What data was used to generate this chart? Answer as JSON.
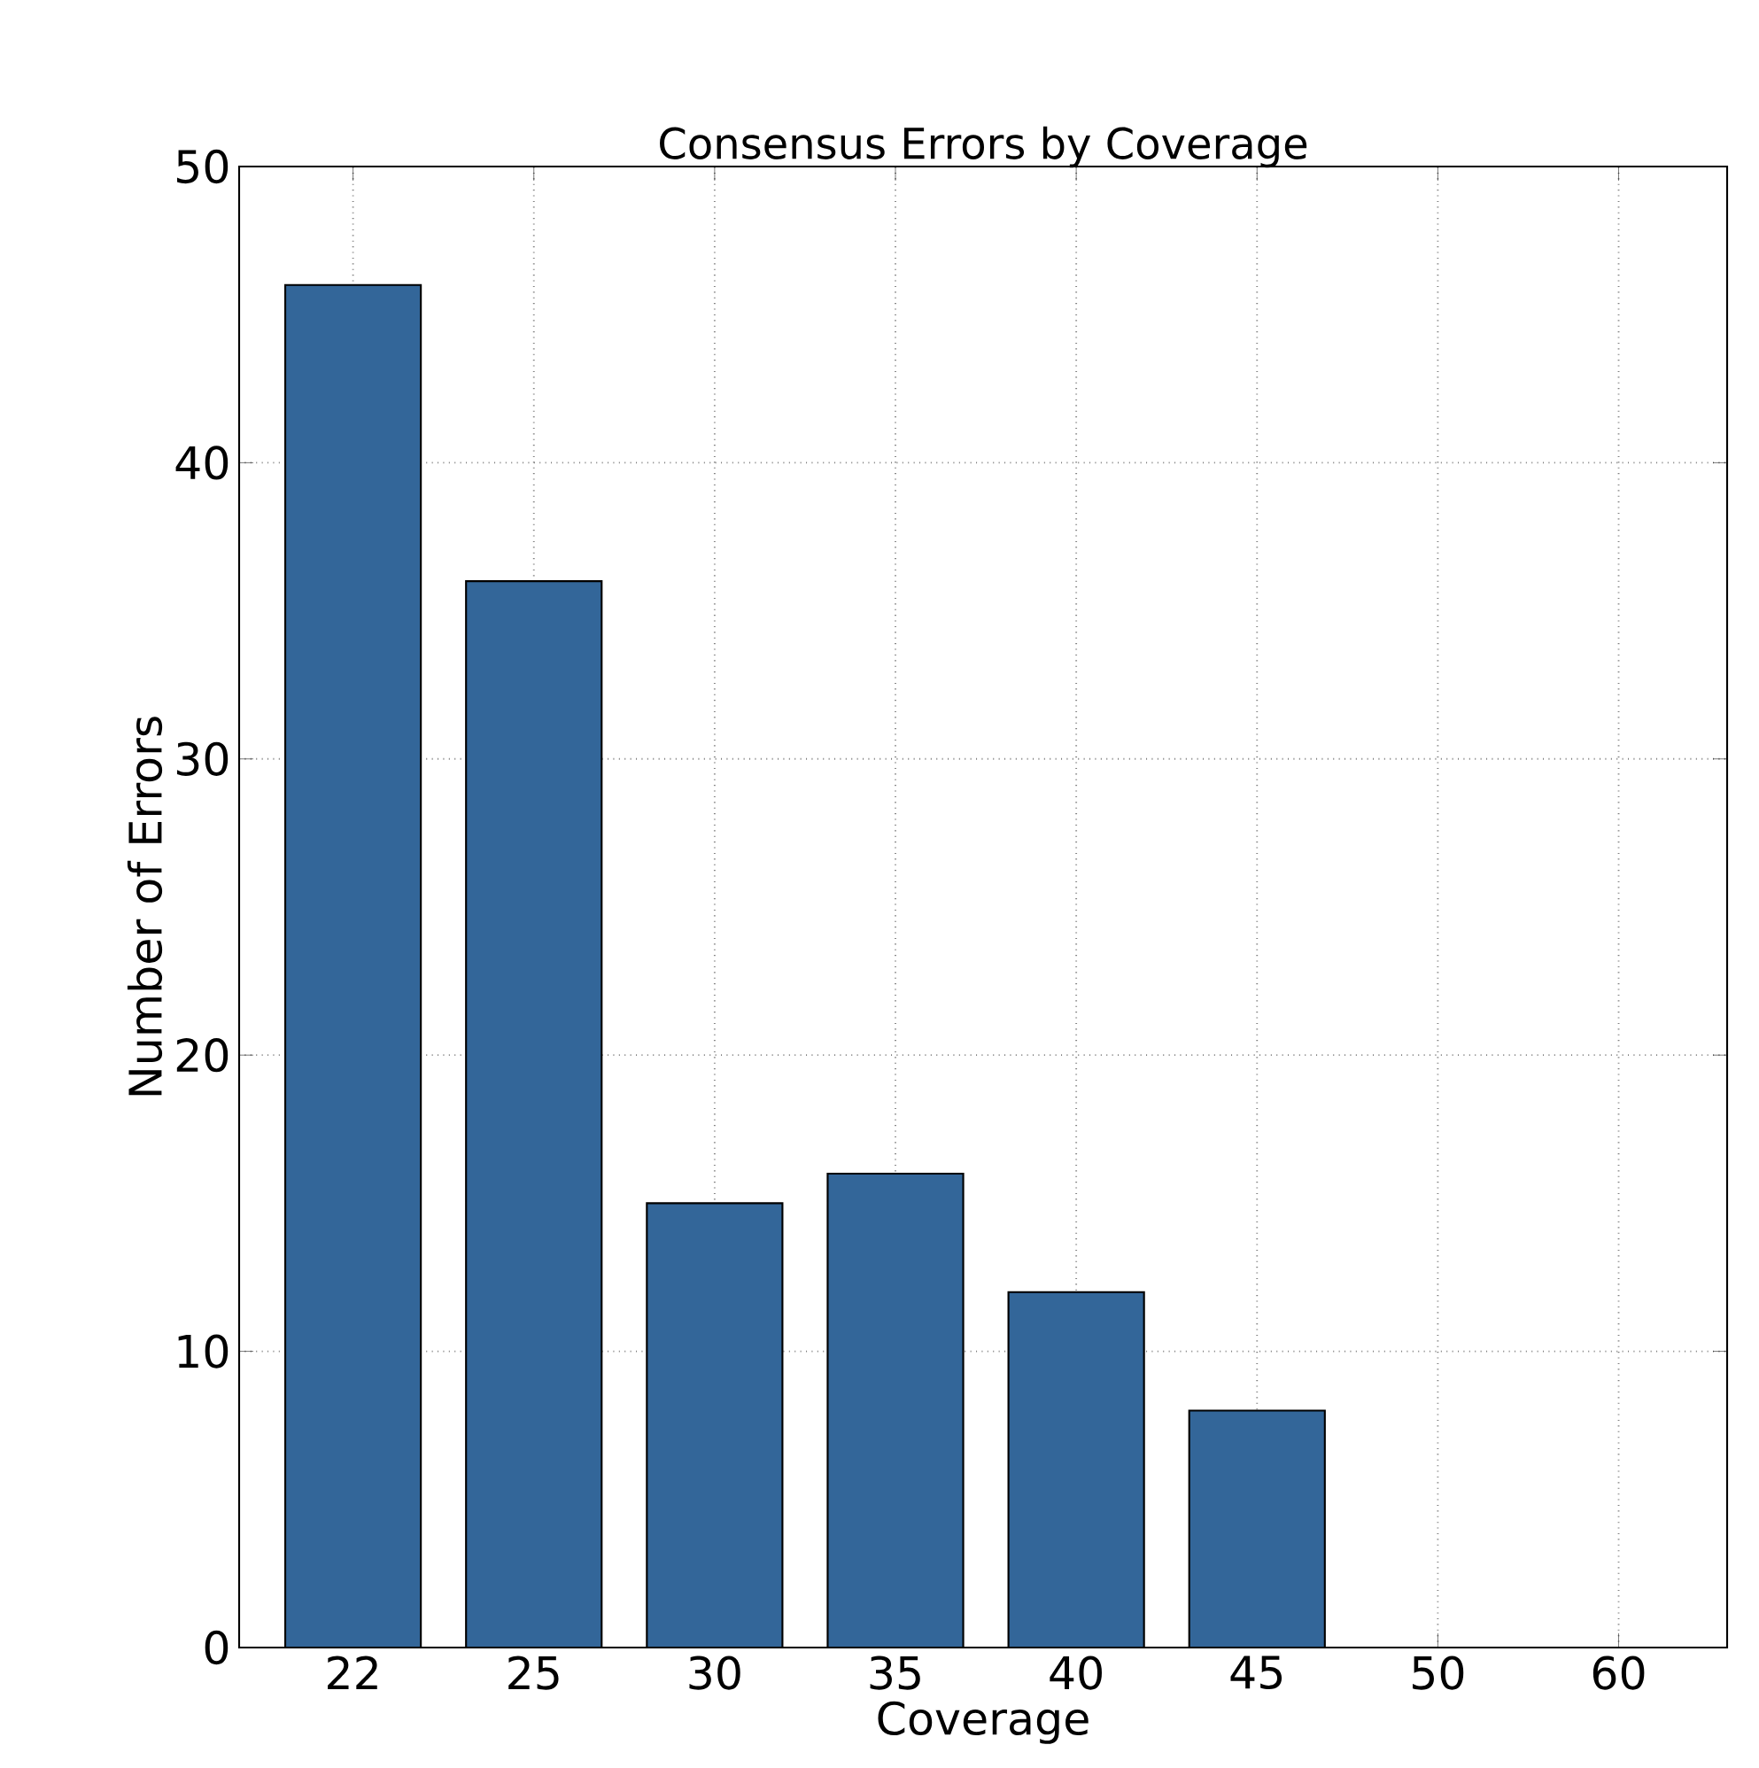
{
  "chart_data": {
    "type": "bar",
    "title": "Consensus Errors by Coverage",
    "xlabel": "Coverage",
    "ylabel": "Number of Errors",
    "categories": [
      "22",
      "25",
      "30",
      "35",
      "40",
      "45",
      "50",
      "60"
    ],
    "values": [
      46,
      36,
      15,
      16,
      12,
      8,
      0,
      0
    ],
    "color": "#336699",
    "ylim": [
      0,
      50
    ],
    "yticks": [
      0,
      10,
      20,
      30,
      40,
      50
    ],
    "grid": true
  }
}
